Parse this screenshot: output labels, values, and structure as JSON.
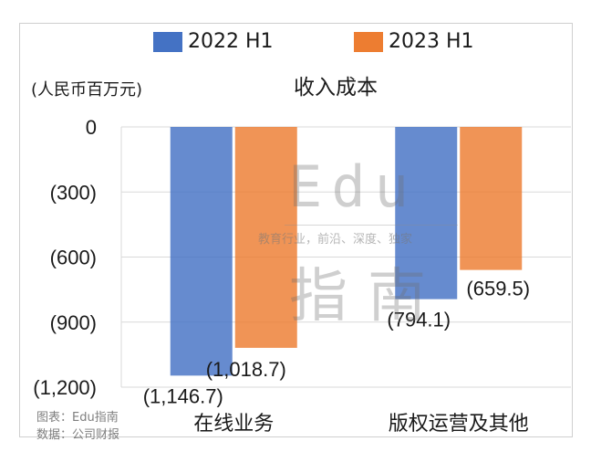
{
  "chart_data": {
    "type": "bar",
    "title": "收入成本",
    "unit_label": "(人民币百万元)",
    "categories": [
      "在线业务",
      "版权运营及其他"
    ],
    "series": [
      {
        "name": "2022 H1",
        "color": "#4472c4",
        "values": [
          -1146.7,
          -794.1
        ],
        "labels": [
          "(1,146.7)",
          "(794.1)"
        ]
      },
      {
        "name": "2023 H1",
        "color": "#ed7d31",
        "values": [
          -1018.7,
          -659.5
        ],
        "labels": [
          "(1,018.7)",
          "(659.5)"
        ]
      }
    ],
    "ylim": [
      -1200,
      0
    ],
    "yticks": [
      0,
      -300,
      -600,
      -900,
      -1200
    ],
    "ytick_labels": [
      "0",
      "(300)",
      "(600)",
      "(900)",
      "(1,200)"
    ],
    "grid": true,
    "legend_position": "top"
  },
  "source": {
    "chart_credit": "图表：Edu指南",
    "data_credit": "数据：公司财报"
  },
  "watermark": {
    "brand_latin": "Edu",
    "brand_cn": "指南",
    "tagline": "教育行业，前沿、深度、独家"
  }
}
